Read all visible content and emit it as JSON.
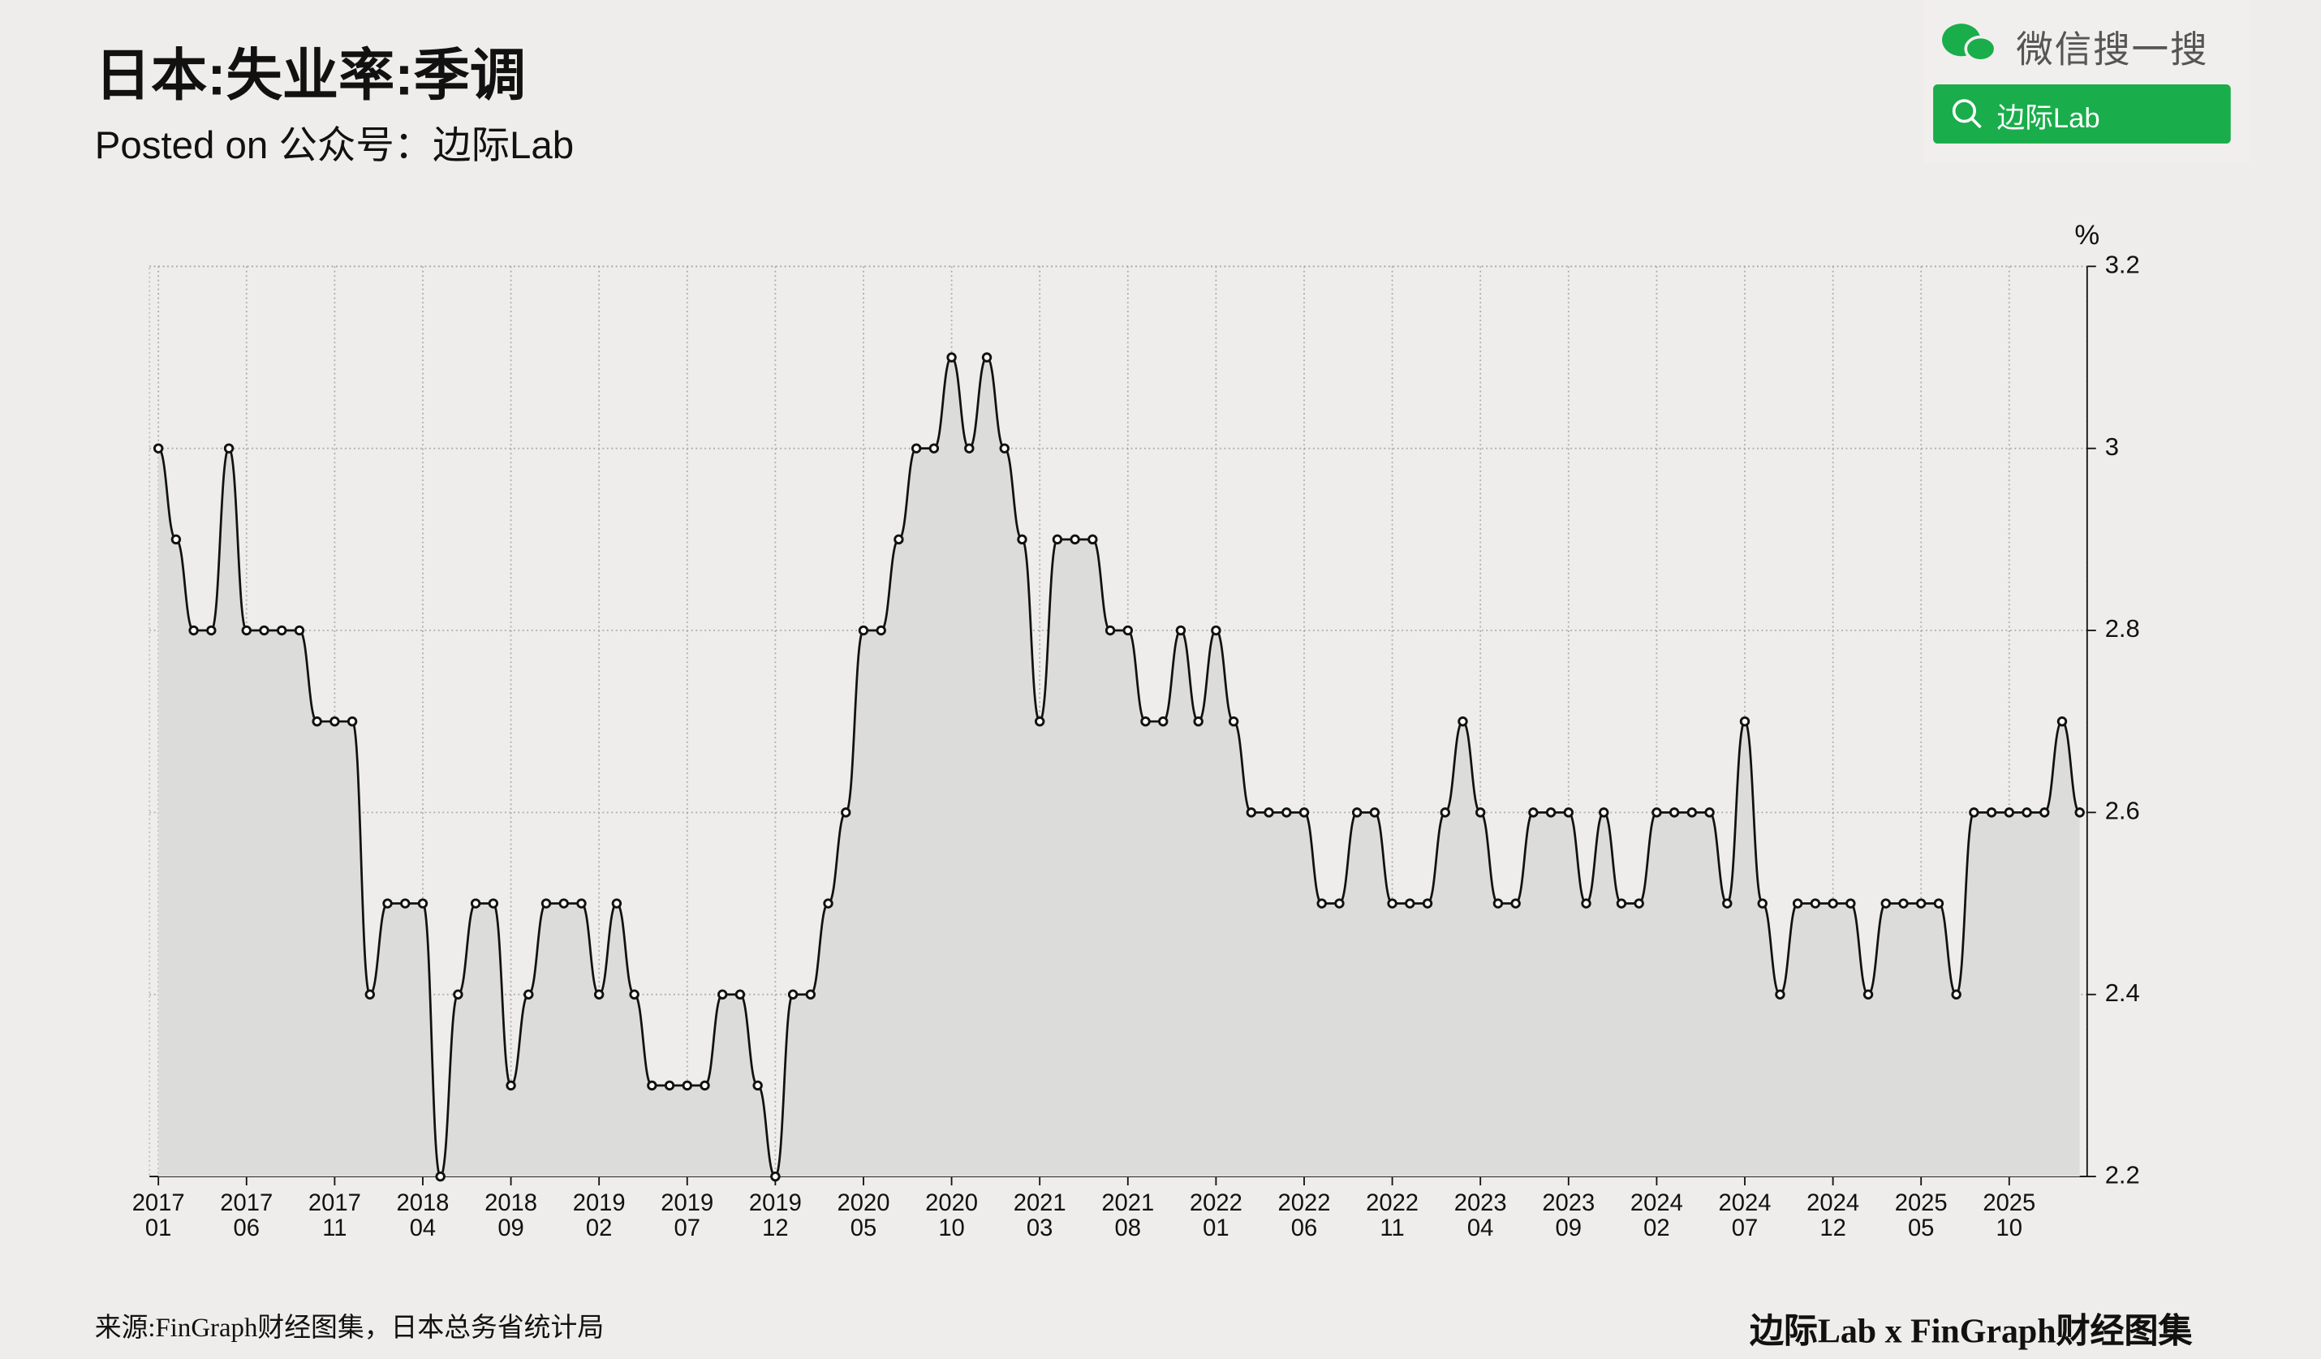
{
  "header": {
    "title": "日本:失业率:季调",
    "subtitle": "Posted on 公众号：边际Lab"
  },
  "wechat": {
    "label": "微信搜一搜",
    "search": "边际Lab"
  },
  "chart_data": {
    "type": "line",
    "unit": "%",
    "categories": [
      "2017\n01",
      null,
      null,
      null,
      null,
      "2017\n06",
      null,
      null,
      null,
      null,
      "2017\n11",
      null,
      null,
      null,
      null,
      "2018\n04",
      null,
      null,
      null,
      null,
      "2018\n09",
      null,
      null,
      null,
      null,
      "2019\n02",
      null,
      null,
      null,
      null,
      "2019\n07",
      null,
      null,
      null,
      null,
      "2019\n12",
      null,
      null,
      null,
      null,
      "2020\n05",
      null,
      null,
      null,
      null,
      "2020\n10",
      null,
      null,
      null,
      null,
      "2021\n03",
      null,
      null,
      null,
      null,
      "2021\n08",
      null,
      null,
      null,
      null,
      "2022\n01",
      null,
      null,
      null,
      null,
      "2022\n06",
      null,
      null,
      null,
      null,
      "2022\n11",
      null,
      null,
      null,
      null,
      "2023\n04",
      null,
      null,
      null,
      null,
      "2023\n09",
      null,
      null,
      null,
      null,
      "2024\n02",
      null,
      null,
      null,
      null,
      "2024\n07",
      null,
      null,
      null,
      null,
      "2024\n12",
      null,
      null,
      null,
      null,
      "2025\n05",
      null,
      null,
      null,
      null,
      "2025\n10",
      null,
      null,
      null,
      null
    ],
    "values": [
      3.0,
      2.9,
      2.8,
      2.8,
      3.0,
      2.8,
      2.8,
      2.8,
      2.8,
      2.7,
      2.7,
      2.7,
      2.4,
      2.5,
      2.5,
      2.5,
      2.2,
      2.4,
      2.5,
      2.5,
      2.3,
      2.4,
      2.5,
      2.5,
      2.5,
      2.4,
      2.5,
      2.4,
      2.3,
      2.3,
      2.3,
      2.3,
      2.4,
      2.4,
      2.3,
      2.2,
      2.4,
      2.4,
      2.5,
      2.6,
      2.8,
      2.8,
      2.9,
      3.0,
      3.0,
      3.1,
      3.0,
      3.1,
      3.0,
      2.9,
      2.7,
      2.9,
      2.9,
      2.9,
      2.8,
      2.8,
      2.7,
      2.7,
      2.8,
      2.7,
      2.8,
      2.7,
      2.6,
      2.6,
      2.6,
      2.6,
      2.5,
      2.5,
      2.6,
      2.6,
      2.5,
      2.5,
      2.5,
      2.6,
      2.7,
      2.6,
      2.5,
      2.5,
      2.6,
      2.6,
      2.6,
      2.5,
      2.6,
      2.5,
      2.5,
      2.6,
      2.6,
      2.6,
      2.6,
      2.5,
      2.7,
      2.5,
      2.4,
      2.5,
      2.5,
      2.5,
      2.5,
      2.4,
      2.5,
      2.5,
      2.5,
      2.5,
      2.4,
      2.6,
      2.6,
      2.6,
      2.6,
      2.6,
      2.7,
      2.6
    ],
    "color": "#111111",
    "fill": "#dcdcda",
    "ylim": [
      2.2,
      3.2
    ],
    "yticks": [
      2.2,
      2.4,
      2.6,
      2.8,
      3,
      3.2
    ],
    "grid": true
  },
  "footer": {
    "source": "来源:FinGraph财经图集，日本总务省统计局",
    "brand": "边际Lab x FinGraph财经图集"
  }
}
